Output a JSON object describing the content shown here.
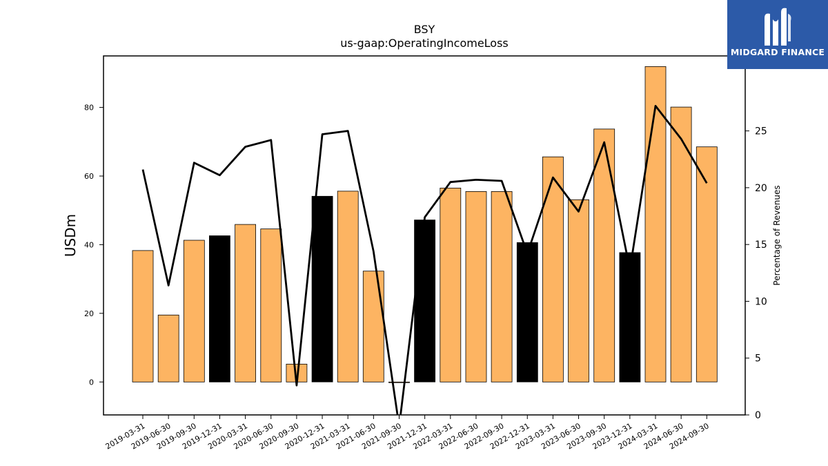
{
  "chart_data": {
    "type": "bar",
    "title": "BSY",
    "subtitle": "us-gaap:OperatingIncomeLoss",
    "ylabel": "USDm",
    "y2label": "Percentage of Revenues",
    "ylim": [
      -9.6,
      95
    ],
    "y2lim": [
      0,
      31.6
    ],
    "yticks": [
      0,
      20,
      40,
      60,
      80
    ],
    "y2ticks": [
      0,
      5,
      10,
      15,
      20,
      25
    ],
    "categories": [
      "2019-03-31",
      "2019-06-30",
      "2019-09-30",
      "2019-12-31",
      "2020-03-31",
      "2020-06-30",
      "2020-09-30",
      "2020-12-31",
      "2021-03-31",
      "2021-06-30",
      "2021-09-30",
      "2021-12-31",
      "2022-03-31",
      "2022-06-30",
      "2022-09-30",
      "2022-12-31",
      "2023-03-31",
      "2023-06-30",
      "2023-09-30",
      "2023-12-31",
      "2024-03-31",
      "2024-06-30",
      "2024-09-30"
    ],
    "series": [
      {
        "type": "bar",
        "values": [
          38.3,
          19.5,
          41.3,
          42.6,
          45.9,
          44.6,
          5.2,
          54.1,
          55.6,
          32.3,
          -0.2,
          47.2,
          56.5,
          55.5,
          55.5,
          40.6,
          65.6,
          53.1,
          73.7,
          37.7,
          91.9,
          80.1,
          68.5
        ]
      },
      {
        "type": "line",
        "axis": "right",
        "values": [
          21.6,
          11.4,
          22.2,
          21.1,
          23.6,
          24.2,
          2.6,
          24.7,
          25.0,
          14.4,
          -1.0,
          17.4,
          20.5,
          20.7,
          20.6,
          14.2,
          20.9,
          17.9,
          24.0,
          12.8,
          27.2,
          24.3,
          20.4
        ]
      }
    ],
    "colors": {
      "bar_default": "#fdb462",
      "bar_q4": "#000000",
      "line": "#000000"
    },
    "grid": false
  },
  "brand": {
    "name": "MIDGARD FINANCE",
    "bg_color": "#2c5aa8"
  }
}
